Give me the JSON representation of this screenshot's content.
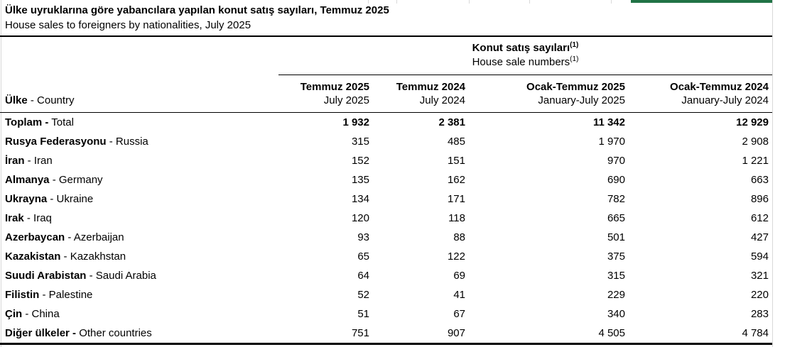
{
  "page": {
    "title_tr": "Ülke uyruklarına göre yabancılara yapılan konut satış sayıları, Temmuz 2025",
    "title_en": "House sales to foreigners by nationalities, July 2025"
  },
  "chrome": {
    "excel_green": "#217346",
    "gridline_color": "#d9d9d9"
  },
  "table": {
    "group_header": {
      "tr": "Konut satış sayıları",
      "en": "House sale numbers",
      "footnote": "(1)"
    },
    "row_header": {
      "label": "Ülke",
      "sep_en": " - Country"
    },
    "columns": [
      {
        "tr": "Temmuz 2025",
        "en": "July 2025"
      },
      {
        "tr": "Temmuz 2024",
        "en": "July 2024"
      },
      {
        "tr": "Ocak-Temmuz 2025",
        "en": "January-July 2025"
      },
      {
        "tr": "Ocak-Temmuz 2024",
        "en": "January-July 2024"
      }
    ],
    "rows": [
      {
        "tr": "Toplam",
        "en": "Total",
        "bold_sep": true,
        "bold_values": true,
        "values": [
          "1 932",
          "2 381",
          "11 342",
          "12 929"
        ]
      },
      {
        "tr": "Rusya Federasyonu",
        "en": "Russia",
        "bold_sep": false,
        "bold_values": false,
        "values": [
          "315",
          "485",
          "1 970",
          "2 908"
        ]
      },
      {
        "tr": "İran",
        "en": "Iran",
        "bold_sep": false,
        "bold_values": false,
        "values": [
          "152",
          "151",
          "970",
          "1 221"
        ]
      },
      {
        "tr": "Almanya",
        "en": "Germany",
        "bold_sep": false,
        "bold_values": false,
        "values": [
          "135",
          "162",
          "690",
          "663"
        ]
      },
      {
        "tr": "Ukrayna",
        "en": "Ukraine",
        "bold_sep": false,
        "bold_values": false,
        "values": [
          "134",
          "171",
          "782",
          "896"
        ]
      },
      {
        "tr": "Irak",
        "en": "Iraq",
        "bold_sep": false,
        "bold_values": false,
        "values": [
          "120",
          "118",
          "665",
          "612"
        ]
      },
      {
        "tr": "Azerbaycan",
        "en": "Azerbaijan",
        "bold_sep": false,
        "bold_values": false,
        "values": [
          "93",
          "88",
          "501",
          "427"
        ]
      },
      {
        "tr": "Kazakistan",
        "en": "Kazakhstan",
        "bold_sep": false,
        "bold_values": false,
        "values": [
          "65",
          "122",
          "375",
          "594"
        ]
      },
      {
        "tr": "Suudi Arabistan",
        "en": "Saudi Arabia",
        "bold_sep": false,
        "bold_values": false,
        "values": [
          "64",
          "69",
          "315",
          "321"
        ]
      },
      {
        "tr": "Filistin",
        "en": "Palestine",
        "bold_sep": false,
        "bold_values": false,
        "values": [
          "52",
          "41",
          "229",
          "220"
        ]
      },
      {
        "tr": "Çin",
        "en": "China",
        "bold_sep": false,
        "bold_values": false,
        "values": [
          "51",
          "67",
          "340",
          "283"
        ]
      },
      {
        "tr": "Diğer ülkeler",
        "en": "Other countries",
        "bold_sep": true,
        "bold_values": false,
        "values": [
          "751",
          "907",
          "4 505",
          "4 784"
        ]
      }
    ]
  }
}
